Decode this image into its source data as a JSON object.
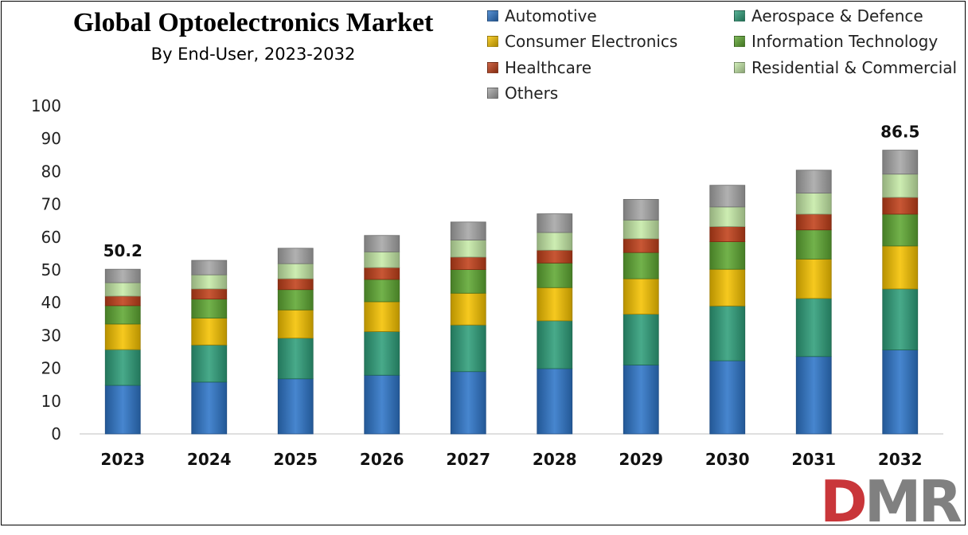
{
  "chart_data": {
    "type": "bar",
    "stacked": true,
    "title": "Global Optoelectronics Market",
    "subtitle": "By End-User, 2023-2032",
    "xlabel": "",
    "ylabel": "",
    "ylim": [
      0,
      100
    ],
    "yticks": [
      0,
      10,
      20,
      30,
      40,
      50,
      60,
      70,
      80,
      90,
      100
    ],
    "grid": false,
    "legend_position": "top-right",
    "categories": [
      "2023",
      "2024",
      "2025",
      "2026",
      "2027",
      "2028",
      "2029",
      "2030",
      "2031",
      "2032"
    ],
    "series": [
      {
        "name": "Automotive",
        "color": "#2e75c8",
        "values": [
          14.8,
          15.8,
          16.8,
          17.9,
          19.0,
          19.9,
          21.0,
          22.3,
          23.6,
          25.6
        ]
      },
      {
        "name": "Aerospace & Defence",
        "color": "#2f9e7a",
        "values": [
          10.9,
          11.3,
          12.4,
          13.3,
          14.2,
          14.6,
          15.5,
          16.7,
          17.7,
          18.6
        ]
      },
      {
        "name": "Consumer Electronics",
        "color": "#f5c200",
        "values": [
          7.8,
          8.2,
          8.6,
          9.1,
          9.7,
          10.1,
          10.8,
          11.2,
          12.0,
          13.1
        ]
      },
      {
        "name": "Information Technology",
        "color": "#5fa832",
        "values": [
          5.6,
          5.8,
          6.2,
          6.8,
          7.2,
          7.5,
          8.0,
          8.4,
          8.9,
          9.7
        ]
      },
      {
        "name": "Healthcare",
        "color": "#c0401a",
        "values": [
          2.9,
          3.1,
          3.3,
          3.6,
          3.8,
          3.9,
          4.2,
          4.6,
          4.8,
          5.1
        ]
      },
      {
        "name": "Residential & Commercial",
        "color": "#c6eaa8",
        "values": [
          4.1,
          4.3,
          4.6,
          4.8,
          5.2,
          5.4,
          5.7,
          6.0,
          6.4,
          7.1
        ]
      },
      {
        "name": "Others",
        "color": "#a6a6a6",
        "values": [
          4.1,
          4.4,
          4.7,
          5.0,
          5.5,
          5.7,
          6.3,
          6.6,
          7.0,
          7.3
        ]
      }
    ],
    "annotations": [
      {
        "category": "2023",
        "text": "50.2"
      },
      {
        "category": "2032",
        "text": "86.5"
      }
    ]
  },
  "logo": {
    "d": "D",
    "m": "M",
    "r": "R"
  }
}
